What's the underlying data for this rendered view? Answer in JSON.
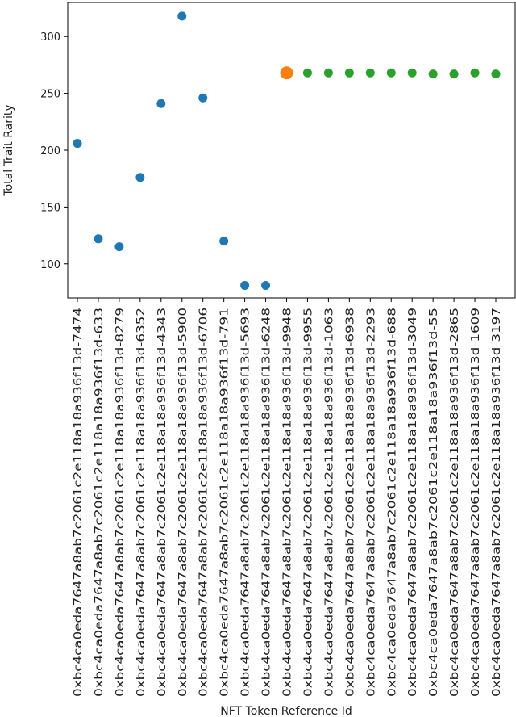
{
  "chart_data": {
    "type": "scatter",
    "title": "",
    "xlabel": "NFT Token Reference Id",
    "ylabel": "Total Trait Rarity",
    "ylim": [
      70,
      330
    ],
    "yticks": [
      100,
      150,
      200,
      250,
      300
    ],
    "grid": false,
    "x": [
      "0xbc4ca0eda7647a8ab7c2061c2e118a18a936f13d-7474",
      "0xbc4ca0eda7647a8ab7c2061c2e118a18a936f13d-633",
      "0xbc4ca0eda7647a8ab7c2061c2e118a18a936f13d-8279",
      "0xbc4ca0eda7647a8ab7c2061c2e118a18a936f13d-6352",
      "0xbc4ca0eda7647a8ab7c2061c2e118a18a936f13d-4343",
      "0xbc4ca0eda7647a8ab7c2061c2e118a18a936f13d-5900",
      "0xbc4ca0eda7647a8ab7c2061c2e118a18a936f13d-6706",
      "0xbc4ca0eda7647a8ab7c2061c2e118a18a936f13d-791",
      "0xbc4ca0eda7647a8ab7c2061c2e118a18a936f13d-5693",
      "0xbc4ca0eda7647a8ab7c2061c2e118a18a936f13d-6248",
      "0xbc4ca0eda7647a8ab7c2061c2e118a18a936f13d-9948",
      "0xbc4ca0eda7647a8ab7c2061c2e118a18a936f13d-9955",
      "0xbc4ca0eda7647a8ab7c2061c2e118a18a936f13d-1063",
      "0xbc4ca0eda7647a8ab7c2061c2e118a18a936f13d-6938",
      "0xbc4ca0eda7647a8ab7c2061c2e118a18a936f13d-2293",
      "0xbc4ca0eda7647a8ab7c2061c2e118a18a936f13d-688",
      "0xbc4ca0eda7647a8ab7c2061c2e118a18a936f13d-3049",
      "0xbc4ca0eda7647a8ab7c2061c2e118a18a936f13d-55",
      "0xbc4ca0eda7647a8ab7c2061c2e118a18a936f13d-2865",
      "0xbc4ca0eda7647a8ab7c2061c2e118a18a936f13d-1609",
      "0xbc4ca0eda7647a8ab7c2061c2e118a18a936f13d-3197"
    ],
    "series": [
      {
        "color": "#1f77b4",
        "marker_size": "normal",
        "points": [
          {
            "x": "0xbc4ca0eda7647a8ab7c2061c2e118a18a936f13d-7474",
            "y": 206
          },
          {
            "x": "0xbc4ca0eda7647a8ab7c2061c2e118a18a936f13d-633",
            "y": 122
          },
          {
            "x": "0xbc4ca0eda7647a8ab7c2061c2e118a18a936f13d-8279",
            "y": 115
          },
          {
            "x": "0xbc4ca0eda7647a8ab7c2061c2e118a18a936f13d-6352",
            "y": 176
          },
          {
            "x": "0xbc4ca0eda7647a8ab7c2061c2e118a18a936f13d-4343",
            "y": 241
          },
          {
            "x": "0xbc4ca0eda7647a8ab7c2061c2e118a18a936f13d-5900",
            "y": 318
          },
          {
            "x": "0xbc4ca0eda7647a8ab7c2061c2e118a18a936f13d-6706",
            "y": 246
          },
          {
            "x": "0xbc4ca0eda7647a8ab7c2061c2e118a18a936f13d-791",
            "y": 120
          },
          {
            "x": "0xbc4ca0eda7647a8ab7c2061c2e118a18a936f13d-5693",
            "y": 81
          },
          {
            "x": "0xbc4ca0eda7647a8ab7c2061c2e118a18a936f13d-6248",
            "y": 81
          }
        ]
      },
      {
        "color": "#ff7f0e",
        "marker_size": "large",
        "points": [
          {
            "x": "0xbc4ca0eda7647a8ab7c2061c2e118a18a936f13d-9948",
            "y": 268
          }
        ]
      },
      {
        "color": "#2ca02c",
        "marker_size": "normal",
        "points": [
          {
            "x": "0xbc4ca0eda7647a8ab7c2061c2e118a18a936f13d-9955",
            "y": 268
          },
          {
            "x": "0xbc4ca0eda7647a8ab7c2061c2e118a18a936f13d-1063",
            "y": 268
          },
          {
            "x": "0xbc4ca0eda7647a8ab7c2061c2e118a18a936f13d-6938",
            "y": 268
          },
          {
            "x": "0xbc4ca0eda7647a8ab7c2061c2e118a18a936f13d-2293",
            "y": 268
          },
          {
            "x": "0xbc4ca0eda7647a8ab7c2061c2e118a18a936f13d-688",
            "y": 268
          },
          {
            "x": "0xbc4ca0eda7647a8ab7c2061c2e118a18a936f13d-3049",
            "y": 268
          },
          {
            "x": "0xbc4ca0eda7647a8ab7c2061c2e118a18a936f13d-55",
            "y": 267
          },
          {
            "x": "0xbc4ca0eda7647a8ab7c2061c2e118a18a936f13d-2865",
            "y": 267
          },
          {
            "x": "0xbc4ca0eda7647a8ab7c2061c2e118a18a936f13d-1609",
            "y": 268
          },
          {
            "x": "0xbc4ca0eda7647a8ab7c2061c2e118a18a936f13d-3197",
            "y": 267
          }
        ]
      }
    ]
  }
}
